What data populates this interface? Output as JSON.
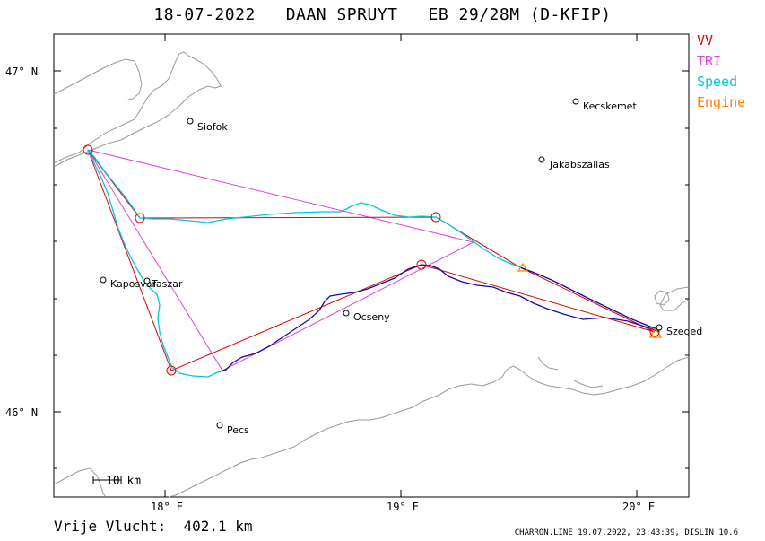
{
  "title": "18-07-2022   DAAN SPRUYT   EB 29/28M (D-KFIP)",
  "legend": [
    {
      "label": "VV",
      "color": "#e00000"
    },
    {
      "label": "TRI",
      "color": "#e040e0"
    },
    {
      "label": "Speed",
      "color": "#00c8e0"
    },
    {
      "label": "Engine",
      "color": "#ff8000"
    }
  ],
  "axes": {
    "x_ticks": [
      "18° E",
      "19° E",
      "20° E"
    ],
    "y_ticks": [
      "47° N",
      "46° N"
    ]
  },
  "scale_bar": "10 km",
  "cities": [
    {
      "name": "Siofok"
    },
    {
      "name": "Kecskemet"
    },
    {
      "name": "Jakabszallas"
    },
    {
      "name": "Kaposvar"
    },
    {
      "name": "Taszar"
    },
    {
      "name": "Ocseny"
    },
    {
      "name": "Szeged"
    },
    {
      "name": "Pecs"
    }
  ],
  "footer_left": "Vrije Vlucht:  402.1 km",
  "footer_right": "CHARRON.LINE 19.07.2022, 23:43:39, DISLIN 10.6",
  "colors": {
    "vv": "#e00000",
    "tri": "#e040e0",
    "speed": "#00c8e0",
    "track_low": "#1a0aa0",
    "engine": "#ff8000",
    "coast": "#999999"
  }
}
